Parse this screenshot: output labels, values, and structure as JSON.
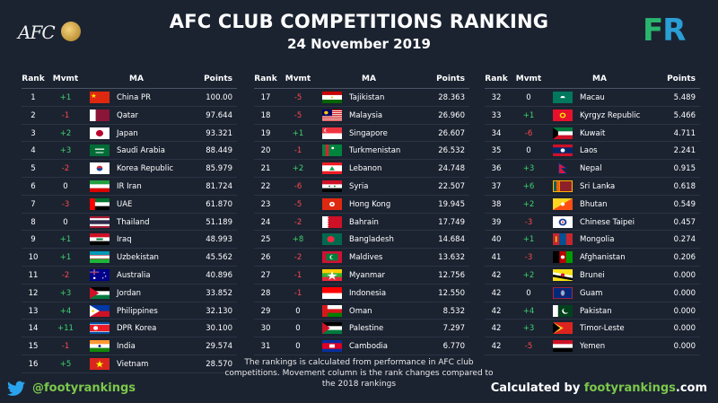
{
  "header": {
    "logo_text": "AFC",
    "title": "AFC CLUB COMPETITIONS RANKING",
    "date": "24 November 2019",
    "badge_f": "F",
    "badge_r": "R"
  },
  "columns": {
    "rank": "Rank",
    "mvmt": "Mvmt",
    "ma": "MA",
    "points": "Points"
  },
  "table1": [
    {
      "rank": "1",
      "mvmt": "+1",
      "ma": "China PR",
      "points": "100.00",
      "flag": "china"
    },
    {
      "rank": "2",
      "mvmt": "-1",
      "ma": "Qatar",
      "points": "97.644",
      "flag": "qatar"
    },
    {
      "rank": "3",
      "mvmt": "+2",
      "ma": "Japan",
      "points": "93.321",
      "flag": "japan"
    },
    {
      "rank": "4",
      "mvmt": "+3",
      "ma": "Saudi Arabia",
      "points": "88.449",
      "flag": "saudi"
    },
    {
      "rank": "5",
      "mvmt": "-2",
      "ma": "Korea Republic",
      "points": "85.979",
      "flag": "korea"
    },
    {
      "rank": "6",
      "mvmt": "0",
      "ma": "IR Iran",
      "points": "81.724",
      "flag": "iran"
    },
    {
      "rank": "7",
      "mvmt": "-3",
      "ma": "UAE",
      "points": "61.870",
      "flag": "uae"
    },
    {
      "rank": "8",
      "mvmt": "0",
      "ma": "Thailand",
      "points": "51.189",
      "flag": "thailand"
    },
    {
      "rank": "9",
      "mvmt": "+1",
      "ma": "Iraq",
      "points": "48.993",
      "flag": "iraq"
    },
    {
      "rank": "10",
      "mvmt": "+1",
      "ma": "Uzbekistan",
      "points": "45.562",
      "flag": "uzbekistan"
    },
    {
      "rank": "11",
      "mvmt": "-2",
      "ma": "Australia",
      "points": "40.896",
      "flag": "australia"
    },
    {
      "rank": "12",
      "mvmt": "+3",
      "ma": "Jordan",
      "points": "33.852",
      "flag": "jordan"
    },
    {
      "rank": "13",
      "mvmt": "+4",
      "ma": "Philippines",
      "points": "32.130",
      "flag": "philippines"
    },
    {
      "rank": "14",
      "mvmt": "+11",
      "ma": "DPR Korea",
      "points": "30.100",
      "flag": "dprk"
    },
    {
      "rank": "15",
      "mvmt": "-1",
      "ma": "India",
      "points": "29.574",
      "flag": "india"
    },
    {
      "rank": "16",
      "mvmt": "+5",
      "ma": "Vietnam",
      "points": "28.570",
      "flag": "vietnam"
    }
  ],
  "table2": [
    {
      "rank": "17",
      "mvmt": "-5",
      "ma": "Tajikistan",
      "points": "28.363",
      "flag": "tajikistan"
    },
    {
      "rank": "18",
      "mvmt": "-5",
      "ma": "Malaysia",
      "points": "26.960",
      "flag": "malaysia"
    },
    {
      "rank": "19",
      "mvmt": "+1",
      "ma": "Singapore",
      "points": "26.607",
      "flag": "singapore"
    },
    {
      "rank": "20",
      "mvmt": "-1",
      "ma": "Turkmenistan",
      "points": "26.532",
      "flag": "turkmenistan"
    },
    {
      "rank": "21",
      "mvmt": "+2",
      "ma": "Lebanon",
      "points": "24.748",
      "flag": "lebanon"
    },
    {
      "rank": "22",
      "mvmt": "-6",
      "ma": "Syria",
      "points": "22.507",
      "flag": "syria"
    },
    {
      "rank": "23",
      "mvmt": "-5",
      "ma": "Hong Kong",
      "points": "19.945",
      "flag": "hongkong"
    },
    {
      "rank": "24",
      "mvmt": "-2",
      "ma": "Bahrain",
      "points": "17.749",
      "flag": "bahrain"
    },
    {
      "rank": "25",
      "mvmt": "+8",
      "ma": "Bangladesh",
      "points": "14.684",
      "flag": "bangladesh"
    },
    {
      "rank": "26",
      "mvmt": "-2",
      "ma": "Maldives",
      "points": "13.632",
      "flag": "maldives"
    },
    {
      "rank": "27",
      "mvmt": "-1",
      "ma": "Myanmar",
      "points": "12.756",
      "flag": "myanmar"
    },
    {
      "rank": "28",
      "mvmt": "-1",
      "ma": "Indonesia",
      "points": "12.550",
      "flag": "indonesia"
    },
    {
      "rank": "29",
      "mvmt": "0",
      "ma": "Oman",
      "points": "8.532",
      "flag": "oman"
    },
    {
      "rank": "30",
      "mvmt": "0",
      "ma": "Palestine",
      "points": "7.297",
      "flag": "palestine"
    },
    {
      "rank": "31",
      "mvmt": "0",
      "ma": "Cambodia",
      "points": "6.770",
      "flag": "cambodia"
    }
  ],
  "table3": [
    {
      "rank": "32",
      "mvmt": "0",
      "ma": "Macau",
      "points": "5.489",
      "flag": "macau"
    },
    {
      "rank": "33",
      "mvmt": "+1",
      "ma": "Kyrgyz Republic",
      "points": "5.466",
      "flag": "kyrgyz"
    },
    {
      "rank": "34",
      "mvmt": "-6",
      "ma": "Kuwait",
      "points": "4.711",
      "flag": "kuwait"
    },
    {
      "rank": "35",
      "mvmt": "0",
      "ma": "Laos",
      "points": "2.241",
      "flag": "laos"
    },
    {
      "rank": "36",
      "mvmt": "+3",
      "ma": "Nepal",
      "points": "0.915",
      "flag": "nepal"
    },
    {
      "rank": "37",
      "mvmt": "+6",
      "ma": "Sri Lanka",
      "points": "0.618",
      "flag": "srilanka"
    },
    {
      "rank": "38",
      "mvmt": "+2",
      "ma": "Bhutan",
      "points": "0.549",
      "flag": "bhutan"
    },
    {
      "rank": "39",
      "mvmt": "-3",
      "ma": "Chinese Taipei",
      "points": "0.457",
      "flag": "taipei"
    },
    {
      "rank": "40",
      "mvmt": "+1",
      "ma": "Mongolia",
      "points": "0.274",
      "flag": "mongolia"
    },
    {
      "rank": "41",
      "mvmt": "-3",
      "ma": "Afghanistan",
      "points": "0.206",
      "flag": "afghanistan"
    },
    {
      "rank": "42",
      "mvmt": "+2",
      "ma": "Brunei",
      "points": "0.000",
      "flag": "brunei"
    },
    {
      "rank": "42",
      "mvmt": "0",
      "ma": "Guam",
      "points": "0.000",
      "flag": "guam"
    },
    {
      "rank": "42",
      "mvmt": "+4",
      "ma": "Pakistan",
      "points": "0.000",
      "flag": "pakistan"
    },
    {
      "rank": "42",
      "mvmt": "+3",
      "ma": "Timor-Leste",
      "points": "0.000",
      "flag": "timor"
    },
    {
      "rank": "42",
      "mvmt": "-5",
      "ma": "Yemen",
      "points": "0.000",
      "flag": "yemen"
    }
  ],
  "footer": {
    "note": "The rankings is calculated from performance in AFC club competitions. Movement column is the rank changes compared to the 2018 rankings",
    "handle": "@footyrankings",
    "calc_prefix": "Calculated by ",
    "calc_site": "footyrankings",
    "calc_suffix": ".com"
  },
  "colors": {
    "background": "#1b2331",
    "positive": "#3fd36a",
    "negative": "#ff4a4a",
    "accent_green": "#7cc84b"
  }
}
